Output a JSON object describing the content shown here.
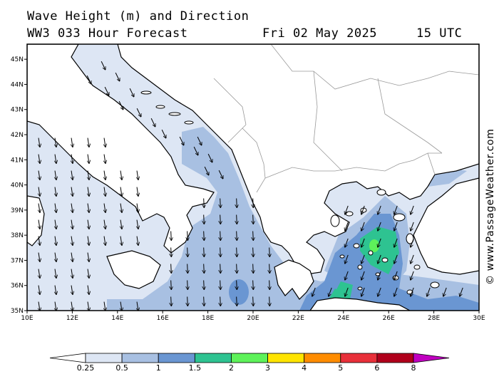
{
  "header": {
    "line1": "Wave Height (m) and Direction",
    "line2": "WW3 033 Hour Forecast",
    "date": "Fri 02 May 2025",
    "time": "15 UTC"
  },
  "credit": "© www.PassageWeather.com",
  "map": {
    "lon_range": [
      10,
      30
    ],
    "lat_range": [
      35,
      45.6
    ],
    "lat_labels": [
      "45N",
      "44N",
      "43N",
      "42N",
      "41N",
      "40N",
      "39N",
      "38N",
      "37N",
      "36N",
      "35N"
    ],
    "lon_labels": [
      "10E",
      "12E",
      "14E",
      "16E",
      "18E",
      "20E",
      "22E",
      "24E",
      "26E",
      "28E",
      "30E"
    ],
    "wave_direction": "southward",
    "colors": {
      "land": "#ffffff",
      "sea_low": "#dde6f4",
      "coast": "#000000",
      "border": "#999999"
    }
  },
  "colorbar": {
    "labels": [
      "0.25",
      "0.5",
      "1",
      "1.5",
      "2",
      "3",
      "4",
      "5",
      "6",
      "8"
    ],
    "colors": [
      "#ffffff",
      "#dde6f4",
      "#a8c0e2",
      "#6a96d2",
      "#2ec391",
      "#5ef25a",
      "#ffe400",
      "#ff8c00",
      "#e8303a",
      "#b0001c",
      "#c000c0"
    ]
  }
}
